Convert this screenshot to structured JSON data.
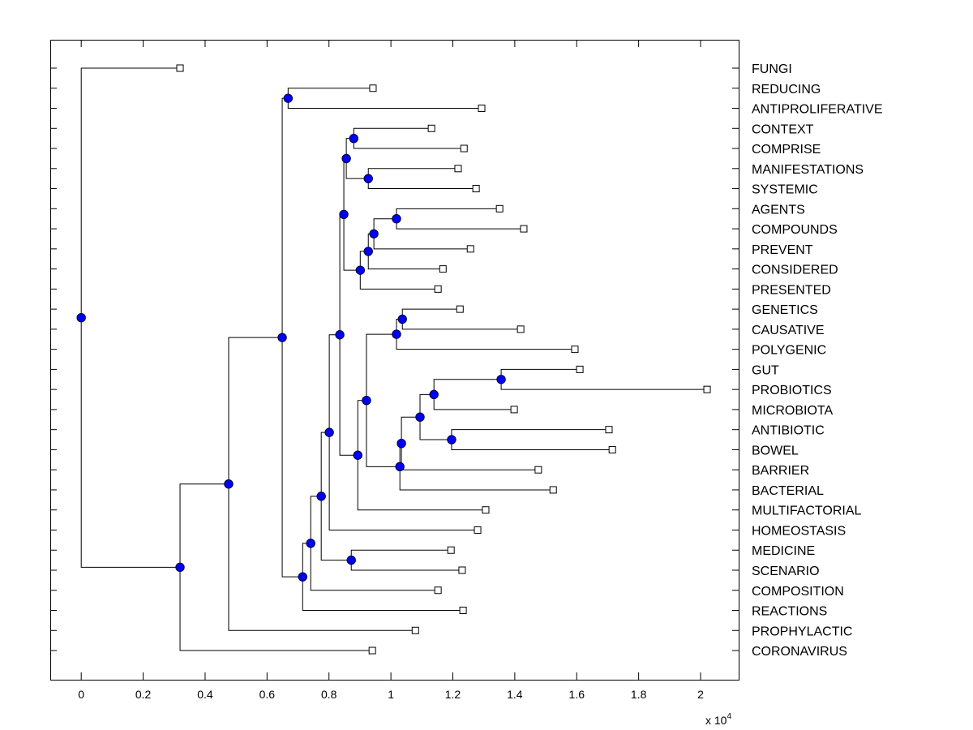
{
  "chart_data": {
    "type": "dendrogram",
    "title": "",
    "xlabel": "",
    "ylabel": "",
    "x_multiplier_label": "x 10",
    "x_multiplier_exponent": "4",
    "xlim": [
      -0.1,
      2.123
    ],
    "x_ticks": [
      0,
      0.2,
      0.4,
      0.6,
      0.8,
      1,
      1.2,
      1.4,
      1.6,
      1.8,
      2
    ],
    "x_tick_labels": [
      "0",
      "0.2",
      "0.4",
      "0.6",
      "0.8",
      "1",
      "1.2",
      "1.4",
      "1.6",
      "1.8",
      "2"
    ],
    "grid": false,
    "colors": {
      "node_fill": "#0000ff",
      "node_stroke": "#000033",
      "line": "#000000",
      "leaf_fill": "#ffffff"
    },
    "leaves": [
      {
        "id": "FUNGI",
        "label": "FUNGI",
        "x": 0.319
      },
      {
        "id": "REDUCING",
        "label": "REDUCING",
        "x": 0.942
      },
      {
        "id": "ANTIPROLIFERATIVE",
        "label": "ANTIPROLIFERATIVE",
        "x": 1.293
      },
      {
        "id": "CONTEXT",
        "label": "CONTEXT",
        "x": 1.131
      },
      {
        "id": "COMPRISE",
        "label": "COMPRISE",
        "x": 1.236
      },
      {
        "id": "MANIFESTATIONS",
        "label": "MANIFESTATIONS",
        "x": 1.217
      },
      {
        "id": "SYSTEMIC",
        "label": "SYSTEMIC",
        "x": 1.275
      },
      {
        "id": "AGENTS",
        "label": "AGENTS",
        "x": 1.351
      },
      {
        "id": "COMPOUNDS",
        "label": "COMPOUNDS",
        "x": 1.429
      },
      {
        "id": "PREVENT",
        "label": "PREVENT",
        "x": 1.257
      },
      {
        "id": "CONSIDERED",
        "label": "CONSIDERED",
        "x": 1.168
      },
      {
        "id": "PRESENTED",
        "label": "PRESENTED",
        "x": 1.152
      },
      {
        "id": "GENETICS",
        "label": "GENETICS",
        "x": 1.223
      },
      {
        "id": "CAUSATIVE",
        "label": "CAUSATIVE",
        "x": 1.419
      },
      {
        "id": "POLYGENIC",
        "label": "POLYGENIC",
        "x": 1.594
      },
      {
        "id": "GUT",
        "label": "GUT",
        "x": 1.61
      },
      {
        "id": "PROBIOTICS",
        "label": "PROBIOTICS",
        "x": 2.021
      },
      {
        "id": "MICROBIOTA",
        "label": "MICROBIOTA",
        "x": 1.398
      },
      {
        "id": "ANTIBIOTIC",
        "label": "ANTIBIOTIC",
        "x": 1.704
      },
      {
        "id": "BOWEL",
        "label": "BOWEL",
        "x": 1.715
      },
      {
        "id": "BARRIER",
        "label": "BARRIER",
        "x": 1.476
      },
      {
        "id": "BACTERIAL",
        "label": "BACTERIAL",
        "x": 1.524
      },
      {
        "id": "MULTIFACTORIAL",
        "label": "MULTIFACTORIAL",
        "x": 1.306
      },
      {
        "id": "HOMEOSTASIS",
        "label": "HOMEOSTASIS",
        "x": 1.28
      },
      {
        "id": "MEDICINE",
        "label": "MEDICINE",
        "x": 1.194
      },
      {
        "id": "SCENARIO",
        "label": "SCENARIO",
        "x": 1.23
      },
      {
        "id": "COMPOSITION",
        "label": "COMPOSITION",
        "x": 1.152
      },
      {
        "id": "REACTIONS",
        "label": "REACTIONS",
        "x": 1.233
      },
      {
        "id": "PROPHYLACTIC",
        "label": "PROPHYLACTIC",
        "x": 1.079
      },
      {
        "id": "CORONAVIRUS",
        "label": "CORONAVIRUS",
        "x": 0.94
      }
    ],
    "nodes": [
      {
        "id": "n_ab",
        "x": 1.018,
        "children": [
          "AGENTS",
          "COMPOUNDS"
        ]
      },
      {
        "id": "n_aa",
        "x": 0.945,
        "children": [
          "n_ab",
          "PREVENT"
        ]
      },
      {
        "id": "n_z",
        "x": 0.927,
        "children": [
          "n_aa",
          "CONSIDERED"
        ]
      },
      {
        "id": "n_y",
        "x": 0.901,
        "children": [
          "n_z",
          "PRESENTED"
        ]
      },
      {
        "id": "n_v",
        "x": 0.88,
        "children": [
          "CONTEXT",
          "COMPRISE"
        ]
      },
      {
        "id": "n_w",
        "x": 0.927,
        "children": [
          "MANIFESTATIONS",
          "SYSTEMIC"
        ]
      },
      {
        "id": "n_x",
        "x": 0.856,
        "children": [
          "n_v",
          "n_w"
        ]
      },
      {
        "id": "n_k",
        "x": 0.848,
        "children": [
          "n_x",
          "n_y"
        ]
      },
      {
        "id": "n_a",
        "x": 1.037,
        "children": [
          "GENETICS",
          "CAUSATIVE"
        ]
      },
      {
        "id": "n_b",
        "x": 1.018,
        "children": [
          "n_a",
          "POLYGENIC"
        ]
      },
      {
        "id": "n_i",
        "x": 1.356,
        "children": [
          "GUT",
          "PROBIOTICS"
        ]
      },
      {
        "id": "n_g",
        "x": 1.139,
        "children": [
          "n_i",
          "MICROBIOTA"
        ]
      },
      {
        "id": "n_h",
        "x": 1.196,
        "children": [
          "ANTIBIOTIC",
          "BOWEL"
        ]
      },
      {
        "id": "n_f",
        "x": 1.094,
        "children": [
          "n_g",
          "n_h"
        ]
      },
      {
        "id": "n_e",
        "x": 1.034,
        "children": [
          "n_f",
          "BARRIER"
        ]
      },
      {
        "id": "n_d",
        "x": 1.029,
        "children": [
          "n_e",
          "BACTERIAL"
        ]
      },
      {
        "id": "n_c",
        "x": 0.921,
        "children": [
          "n_b",
          "n_d"
        ]
      },
      {
        "id": "n_l",
        "x": 0.893,
        "children": [
          "n_c",
          "MULTIFACTORIAL"
        ]
      },
      {
        "id": "n_j",
        "x": 0.835,
        "children": [
          "n_k",
          "n_l"
        ]
      },
      {
        "id": "n_m",
        "x": 0.801,
        "children": [
          "n_j",
          "HOMEOSTASIS"
        ]
      },
      {
        "id": "n_o",
        "x": 0.872,
        "children": [
          "MEDICINE",
          "SCENARIO"
        ]
      },
      {
        "id": "n_n",
        "x": 0.775,
        "children": [
          "n_m",
          "n_o"
        ]
      },
      {
        "id": "n_p",
        "x": 0.741,
        "children": [
          "n_n",
          "COMPOSITION"
        ]
      },
      {
        "id": "n_q",
        "x": 0.715,
        "children": [
          "n_p",
          "REACTIONS"
        ]
      },
      {
        "id": "n_s",
        "x": 0.668,
        "children": [
          "REDUCING",
          "ANTIPROLIFERATIVE"
        ]
      },
      {
        "id": "n_r",
        "x": 0.649,
        "children": [
          "n_s",
          "n_q"
        ]
      },
      {
        "id": "n_t",
        "x": 0.476,
        "children": [
          "n_r",
          "PROPHYLACTIC"
        ]
      },
      {
        "id": "n_u",
        "x": 0.319,
        "children": [
          "n_t",
          "CORONAVIRUS"
        ]
      },
      {
        "id": "root",
        "x": 0.0,
        "children": [
          "FUNGI",
          "n_u"
        ]
      }
    ]
  }
}
